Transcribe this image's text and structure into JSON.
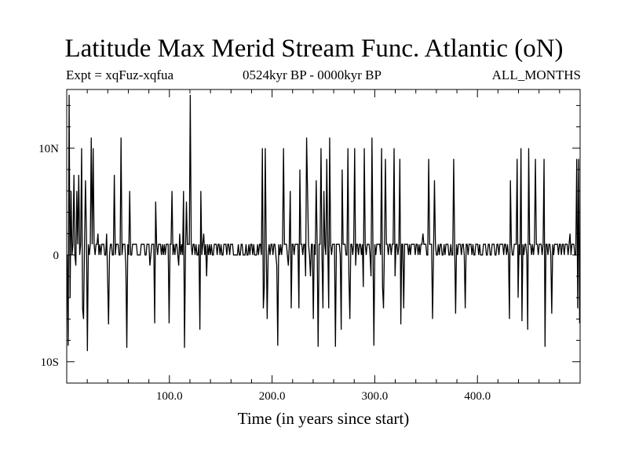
{
  "header": {
    "title": "Latitude Max Merid Stream Func. Atlantic (oN)",
    "expt": "Expt = xqFuz-xqfua",
    "period": "0524kyr BP - 0000kyr BP",
    "months": "ALL_MONTHS"
  },
  "chart_data": {
    "type": "line",
    "title": "Latitude Max Merid Stream Func. Atlantic (oN)",
    "xlabel": "Time (in years since start)",
    "ylabel": "",
    "xlim": [
      0,
      500
    ],
    "ylim": [
      -12,
      15.5
    ],
    "grid": false,
    "xticks": [
      {
        "value": 100,
        "label": "100.0"
      },
      {
        "value": 200,
        "label": "200.0"
      },
      {
        "value": 300,
        "label": "300.0"
      },
      {
        "value": 400,
        "label": "400.0"
      }
    ],
    "yticks": [
      {
        "value": 10,
        "label": "10N"
      },
      {
        "value": 0,
        "label": "0"
      },
      {
        "value": -10,
        "label": "10S"
      }
    ],
    "line_color": "#000000",
    "series": [
      {
        "values": [
          0,
          -8.5,
          15,
          -4,
          6,
          0,
          1,
          7.5,
          0,
          -1,
          6,
          1,
          7.5,
          0,
          1,
          10,
          -5,
          -6,
          1,
          7,
          2,
          -9,
          1,
          0,
          1,
          11,
          1,
          10,
          1,
          0,
          1,
          1,
          2,
          0,
          1,
          0,
          1,
          1,
          1,
          0,
          0,
          2,
          -2,
          -6.5,
          0,
          1,
          1,
          0,
          0,
          7.5,
          0,
          1,
          1,
          1,
          0,
          0,
          11,
          0,
          1,
          1,
          1,
          -1,
          -8.7,
          1,
          0,
          6,
          0,
          0,
          1,
          1,
          1,
          1,
          1,
          0,
          0,
          0,
          0,
          1,
          1,
          1,
          1,
          0,
          0,
          1,
          1,
          1,
          -1,
          0,
          1,
          1,
          1,
          -6.4,
          5,
          1,
          0,
          1,
          1,
          1,
          0,
          1,
          0,
          1,
          0,
          1,
          1,
          1,
          -6.4,
          1,
          1,
          6,
          0,
          1,
          0,
          1,
          1,
          0,
          -1,
          2,
          0,
          1,
          0,
          6,
          -8.7,
          0,
          5,
          1,
          1,
          1,
          15,
          1,
          0,
          1,
          1,
          0,
          1,
          0,
          0,
          1,
          -7,
          6,
          0,
          1,
          2,
          0,
          1,
          -2,
          1,
          0,
          1,
          0,
          1,
          0,
          0,
          1,
          1,
          1,
          0,
          1,
          1,
          0,
          1,
          0,
          0,
          1,
          1,
          1,
          0,
          1,
          1,
          0,
          1,
          1,
          1,
          0,
          0,
          0,
          0,
          0,
          1,
          0,
          0,
          1,
          1,
          0,
          0,
          0,
          1,
          0,
          0,
          1,
          0,
          1,
          1,
          0,
          1,
          0,
          0,
          0,
          1,
          0,
          1,
          1,
          0,
          10,
          -5,
          -3,
          10,
          1,
          -6,
          0,
          1,
          0,
          1,
          1,
          0,
          1,
          1,
          0,
          -1,
          -8.5,
          1,
          0,
          1,
          0,
          1,
          10,
          1,
          1,
          1,
          0,
          -1,
          1,
          6,
          -5,
          1,
          1,
          0,
          1,
          1,
          1,
          1,
          -5,
          8,
          1,
          1,
          0,
          1,
          1,
          -2,
          11,
          6,
          1,
          0,
          -2,
          1,
          1,
          -6,
          1,
          0,
          7,
          1,
          -8.6,
          1,
          1,
          10,
          0,
          -5,
          6,
          1,
          0,
          9,
          1,
          -5,
          11,
          1,
          0,
          1,
          1,
          1,
          -8.6,
          1,
          1,
          1,
          1,
          0,
          -7,
          8,
          1,
          1,
          1,
          0,
          0,
          10,
          -2,
          -6,
          1,
          1,
          0,
          1,
          10,
          -1,
          1,
          1,
          0,
          1,
          1,
          0,
          1,
          -3,
          10,
          1,
          0,
          1,
          1,
          1,
          0,
          -2,
          11,
          1,
          -8.5,
          1,
          0,
          1,
          1,
          1,
          1,
          0,
          10,
          -3,
          -5,
          1,
          9,
          1,
          1,
          0,
          1,
          1,
          0,
          1,
          1,
          10,
          -2,
          1,
          1,
          0,
          1,
          9,
          -6.5,
          1,
          1,
          -5,
          1,
          1,
          1,
          1,
          0,
          1,
          0,
          1,
          1,
          1,
          1,
          0,
          1,
          1,
          0,
          1,
          0,
          1,
          1,
          2,
          1,
          1,
          1,
          0,
          0,
          9,
          1,
          1,
          1,
          -6,
          0,
          7,
          1,
          0,
          0,
          1,
          0,
          1,
          1,
          0,
          0,
          1,
          0,
          1,
          1,
          1,
          0,
          0,
          1,
          0,
          0,
          9,
          1,
          -5.5,
          1,
          0,
          1,
          1,
          1,
          0,
          1,
          1,
          0,
          -5,
          1,
          1,
          0,
          1,
          1,
          1,
          0,
          1,
          0,
          0,
          1,
          1,
          1,
          0,
          1,
          0,
          0,
          0,
          1,
          1,
          1,
          0,
          0,
          1,
          1,
          0,
          0,
          1,
          1,
          1,
          0,
          0,
          1,
          1,
          0,
          1,
          1,
          1,
          1,
          0,
          1,
          1,
          0,
          1,
          0,
          -6,
          7,
          1,
          0,
          0,
          1,
          1,
          1,
          9,
          -4,
          1,
          0,
          10,
          -6.2,
          1,
          0,
          1,
          1,
          0,
          -7,
          10,
          1,
          1,
          0,
          1,
          0,
          1,
          9,
          1,
          1,
          0,
          1,
          1,
          1,
          0,
          1,
          9,
          -8.6,
          1,
          1,
          0,
          1,
          1,
          0,
          -5.5,
          1,
          0,
          1,
          1,
          1,
          1,
          0,
          1,
          1,
          0,
          1,
          1,
          0,
          1,
          1,
          1,
          0,
          1,
          2,
          0,
          1,
          1,
          1,
          0,
          0,
          9,
          -5,
          9,
          -6.4
        ]
      }
    ]
  }
}
